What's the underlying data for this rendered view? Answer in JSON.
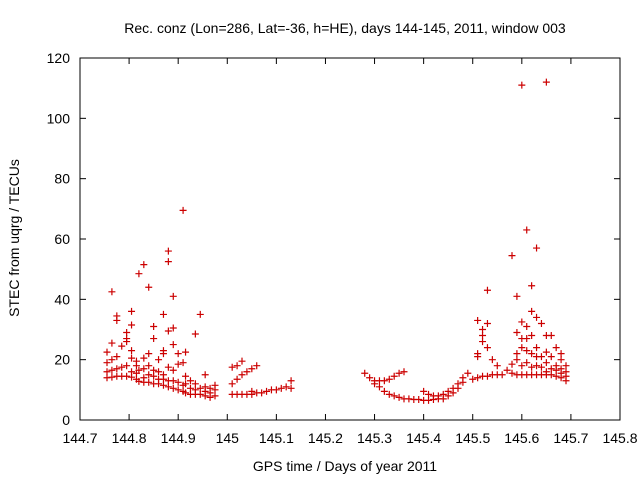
{
  "chart_data": {
    "type": "scatter",
    "title": "Rec. conz (Lon=286, Lat=-36, h=HE), days 144-145, 2011, window 003",
    "xlabel": "GPS time / Days of year 2011",
    "ylabel": "STEC from uqrg / TECUs",
    "xlim": [
      144.7,
      145.8
    ],
    "ylim": [
      0,
      120
    ],
    "xticks": [
      "144.7",
      "144.8",
      "144.9",
      "145",
      "145.1",
      "145.2",
      "145.3",
      "145.4",
      "145.5",
      "145.6",
      "145.7",
      "145.8"
    ],
    "yticks": [
      "0",
      "20",
      "40",
      "60",
      "80",
      "100",
      "120"
    ],
    "grid": false,
    "marker": "+",
    "color": "#cc0000",
    "series": [
      {
        "points": [
          [
            144.755,
            14
          ],
          [
            144.755,
            16
          ],
          [
            144.755,
            19
          ],
          [
            144.755,
            22.5
          ],
          [
            144.765,
            14.2
          ],
          [
            144.765,
            16.5
          ],
          [
            144.765,
            20
          ],
          [
            144.765,
            25.5
          ],
          [
            144.765,
            42.5
          ],
          [
            144.775,
            14.5
          ],
          [
            144.775,
            17
          ],
          [
            144.775,
            21
          ],
          [
            144.775,
            33
          ],
          [
            144.775,
            34.5
          ],
          [
            144.785,
            14.5
          ],
          [
            144.785,
            17.5
          ],
          [
            144.785,
            24.5
          ],
          [
            144.795,
            14.5
          ],
          [
            144.795,
            18
          ],
          [
            144.795,
            26
          ],
          [
            144.795,
            27
          ],
          [
            144.795,
            29
          ],
          [
            144.805,
            14.2
          ],
          [
            144.805,
            16
          ],
          [
            144.805,
            20.5
          ],
          [
            144.805,
            23
          ],
          [
            144.805,
            31.5
          ],
          [
            144.805,
            36
          ],
          [
            144.815,
            13.5
          ],
          [
            144.815,
            15.5
          ],
          [
            144.815,
            18
          ],
          [
            144.815,
            19.5
          ],
          [
            144.82,
            12.8
          ],
          [
            144.82,
            16.5
          ],
          [
            144.82,
            48.5
          ],
          [
            144.83,
            12.5
          ],
          [
            144.83,
            14
          ],
          [
            144.83,
            17
          ],
          [
            144.83,
            20.5
          ],
          [
            144.83,
            51.5
          ],
          [
            144.84,
            12.5
          ],
          [
            144.84,
            15
          ],
          [
            144.84,
            18
          ],
          [
            144.84,
            22
          ],
          [
            144.84,
            44
          ],
          [
            144.85,
            12
          ],
          [
            144.85,
            14.5
          ],
          [
            144.85,
            16.5
          ],
          [
            144.85,
            27
          ],
          [
            144.85,
            31
          ],
          [
            144.86,
            12
          ],
          [
            144.86,
            13.5
          ],
          [
            144.86,
            16
          ],
          [
            144.86,
            20
          ],
          [
            144.87,
            11.5
          ],
          [
            144.87,
            13.5
          ],
          [
            144.87,
            15
          ],
          [
            144.87,
            22
          ],
          [
            144.87,
            23
          ],
          [
            144.87,
            35
          ],
          [
            144.88,
            11
          ],
          [
            144.88,
            13
          ],
          [
            144.88,
            17.5
          ],
          [
            144.88,
            29.5
          ],
          [
            144.88,
            52.5
          ],
          [
            144.88,
            56
          ],
          [
            144.89,
            10.5
          ],
          [
            144.89,
            13
          ],
          [
            144.89,
            16.5
          ],
          [
            144.89,
            25
          ],
          [
            144.89,
            30.5
          ],
          [
            144.89,
            41
          ],
          [
            144.9,
            10
          ],
          [
            144.9,
            12.5
          ],
          [
            144.9,
            18.5
          ],
          [
            144.9,
            22
          ],
          [
            144.91,
            9.5
          ],
          [
            144.91,
            11.5
          ],
          [
            144.91,
            19
          ],
          [
            144.91,
            69.5
          ],
          [
            144.915,
            9
          ],
          [
            144.915,
            12
          ],
          [
            144.915,
            14.5
          ],
          [
            144.915,
            22.5
          ],
          [
            144.925,
            8.5
          ],
          [
            144.925,
            10.5
          ],
          [
            144.925,
            13
          ],
          [
            144.935,
            8.5
          ],
          [
            144.935,
            10
          ],
          [
            144.935,
            12
          ],
          [
            144.935,
            28.5
          ],
          [
            144.945,
            8.5
          ],
          [
            144.945,
            10.5
          ],
          [
            144.945,
            35
          ],
          [
            144.955,
            8
          ],
          [
            144.955,
            9.5
          ],
          [
            144.955,
            11
          ],
          [
            144.955,
            15
          ],
          [
            144.965,
            7.5
          ],
          [
            144.965,
            9
          ],
          [
            144.965,
            10.5
          ],
          [
            144.975,
            8
          ],
          [
            144.975,
            10
          ],
          [
            144.975,
            11.5
          ],
          [
            145.01,
            8.5
          ],
          [
            145.01,
            12
          ],
          [
            145.01,
            17.5
          ],
          [
            145.02,
            8.5
          ],
          [
            145.02,
            13.5
          ],
          [
            145.02,
            18
          ],
          [
            145.03,
            8.5
          ],
          [
            145.03,
            15
          ],
          [
            145.03,
            19.5
          ],
          [
            145.04,
            8.5
          ],
          [
            145.04,
            16
          ],
          [
            145.05,
            8.5
          ],
          [
            145.05,
            9.5
          ],
          [
            145.05,
            17
          ],
          [
            145.06,
            9
          ],
          [
            145.06,
            18
          ],
          [
            145.07,
            9
          ],
          [
            145.08,
            9.5
          ],
          [
            145.09,
            10
          ],
          [
            145.1,
            10
          ],
          [
            145.11,
            10.5
          ],
          [
            145.12,
            11
          ],
          [
            145.13,
            10.5
          ],
          [
            145.13,
            13
          ],
          [
            145.28,
            15.5
          ],
          [
            145.29,
            14
          ],
          [
            145.3,
            12
          ],
          [
            145.3,
            13
          ],
          [
            145.31,
            11
          ],
          [
            145.31,
            13
          ],
          [
            145.32,
            9.5
          ],
          [
            145.32,
            13
          ],
          [
            145.33,
            8.5
          ],
          [
            145.33,
            13.5
          ],
          [
            145.34,
            8
          ],
          [
            145.34,
            14.5
          ],
          [
            145.35,
            7.5
          ],
          [
            145.35,
            15.5
          ],
          [
            145.36,
            7
          ],
          [
            145.36,
            16
          ],
          [
            145.37,
            7
          ],
          [
            145.38,
            6.8
          ],
          [
            145.39,
            6.8
          ],
          [
            145.4,
            6.5
          ],
          [
            145.4,
            9.5
          ],
          [
            145.41,
            6.5
          ],
          [
            145.41,
            8.5
          ],
          [
            145.42,
            6.8
          ],
          [
            145.42,
            8
          ],
          [
            145.43,
            7
          ],
          [
            145.43,
            8
          ],
          [
            145.44,
            7
          ],
          [
            145.44,
            8.5
          ],
          [
            145.45,
            8
          ],
          [
            145.45,
            9.5
          ],
          [
            145.46,
            9
          ],
          [
            145.46,
            10.5
          ],
          [
            145.47,
            10.5
          ],
          [
            145.47,
            12
          ],
          [
            145.48,
            12.5
          ],
          [
            145.48,
            14
          ],
          [
            145.49,
            15.5
          ],
          [
            145.5,
            13.5
          ],
          [
            145.51,
            14
          ],
          [
            145.51,
            21
          ],
          [
            145.51,
            22
          ],
          [
            145.51,
            33
          ],
          [
            145.52,
            14.5
          ],
          [
            145.52,
            26
          ],
          [
            145.52,
            28
          ],
          [
            145.52,
            30
          ],
          [
            145.53,
            14.5
          ],
          [
            145.53,
            24
          ],
          [
            145.53,
            32
          ],
          [
            145.53,
            43
          ],
          [
            145.54,
            15
          ],
          [
            145.54,
            20
          ],
          [
            145.55,
            15
          ],
          [
            145.55,
            18
          ],
          [
            145.56,
            15
          ],
          [
            145.57,
            16.5
          ],
          [
            145.58,
            15.5
          ],
          [
            145.58,
            18.5
          ],
          [
            145.58,
            54.5
          ],
          [
            145.59,
            15
          ],
          [
            145.59,
            20
          ],
          [
            145.59,
            22
          ],
          [
            145.59,
            29
          ],
          [
            145.59,
            41
          ],
          [
            145.6,
            15
          ],
          [
            145.6,
            18
          ],
          [
            145.6,
            24
          ],
          [
            145.6,
            27
          ],
          [
            145.6,
            32.5
          ],
          [
            145.6,
            111
          ],
          [
            145.61,
            15
          ],
          [
            145.61,
            19
          ],
          [
            145.61,
            23
          ],
          [
            145.61,
            27
          ],
          [
            145.61,
            31
          ],
          [
            145.61,
            63
          ],
          [
            145.62,
            15
          ],
          [
            145.62,
            17.5
          ],
          [
            145.62,
            22
          ],
          [
            145.62,
            28
          ],
          [
            145.62,
            36
          ],
          [
            145.62,
            44.5
          ],
          [
            145.63,
            15
          ],
          [
            145.63,
            18
          ],
          [
            145.63,
            21
          ],
          [
            145.63,
            24
          ],
          [
            145.63,
            34
          ],
          [
            145.63,
            57
          ],
          [
            145.64,
            15
          ],
          [
            145.64,
            17.5
          ],
          [
            145.64,
            21
          ],
          [
            145.64,
            32
          ],
          [
            145.65,
            15
          ],
          [
            145.65,
            16
          ],
          [
            145.65,
            19
          ],
          [
            145.65,
            22.5
          ],
          [
            145.65,
            28
          ],
          [
            145.65,
            112
          ],
          [
            145.66,
            15
          ],
          [
            145.66,
            17
          ],
          [
            145.66,
            21
          ],
          [
            145.66,
            28
          ],
          [
            145.67,
            14.5
          ],
          [
            145.67,
            16.5
          ],
          [
            145.67,
            18
          ],
          [
            145.67,
            24
          ],
          [
            145.68,
            14
          ],
          [
            145.68,
            15.5
          ],
          [
            145.68,
            17
          ],
          [
            145.68,
            20
          ],
          [
            145.68,
            22
          ],
          [
            145.69,
            13
          ],
          [
            145.69,
            14.5
          ],
          [
            145.69,
            16
          ],
          [
            145.69,
            18
          ]
        ]
      }
    ]
  }
}
